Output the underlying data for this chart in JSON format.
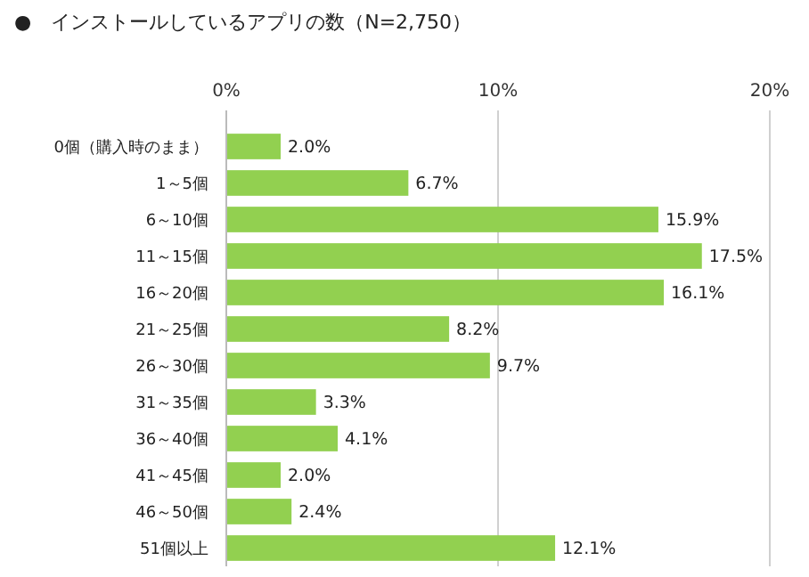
{
  "chart_data": {
    "type": "bar",
    "orientation": "horizontal",
    "title": "●　インストールしているアプリの数（N=2,750）",
    "categories": [
      "0個（購入時のまま）",
      "1～5個",
      "6～10個",
      "11～15個",
      "16～20個",
      "21～25個",
      "26～30個",
      "31～35個",
      "36～40個",
      "41～45個",
      "46～50個",
      "51個以上"
    ],
    "values": [
      2.0,
      6.7,
      15.9,
      17.5,
      16.1,
      8.2,
      9.7,
      3.3,
      4.1,
      2.0,
      2.4,
      12.1
    ],
    "value_labels": [
      "2.0%",
      "6.7%",
      "15.9%",
      "17.5%",
      "16.1%",
      "8.2%",
      "9.7%",
      "3.3%",
      "4.1%",
      "2.0%",
      "2.4%",
      "12.1%"
    ],
    "color": "#92d050",
    "xlim": [
      0,
      20
    ],
    "xticks": [
      {
        "value": 0,
        "label": "0%"
      },
      {
        "value": 10,
        "label": "10%"
      },
      {
        "value": 20,
        "label": "20%"
      }
    ],
    "grid": "x"
  }
}
